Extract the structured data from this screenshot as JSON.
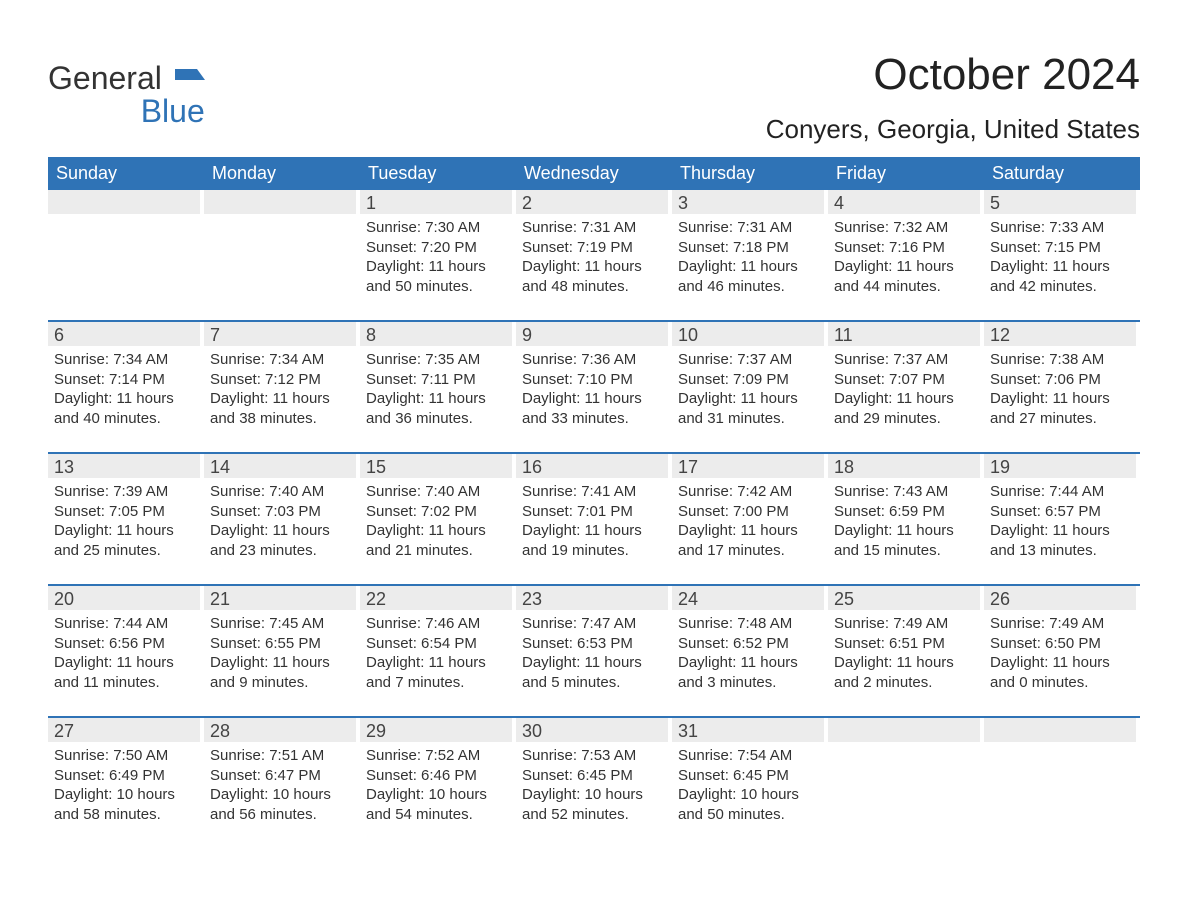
{
  "brand": {
    "line1": "General",
    "line2": "Blue",
    "logo_color": "#2f73b6",
    "text_color": "#333333"
  },
  "title": "October 2024",
  "location": "Conyers, Georgia, United States",
  "colors": {
    "header_bg": "#2f73b6",
    "header_text": "#ffffff",
    "daynum_bg": "#ececec",
    "text": "#333333",
    "week_border": "#2f73b6",
    "background": "#ffffff"
  },
  "typography": {
    "title_fontsize": 44,
    "location_fontsize": 26,
    "weekday_fontsize": 18,
    "daynum_fontsize": 18,
    "body_fontsize": 15
  },
  "weekdays": [
    "Sunday",
    "Monday",
    "Tuesday",
    "Wednesday",
    "Thursday",
    "Friday",
    "Saturday"
  ],
  "weeks": [
    [
      null,
      null,
      {
        "n": "1",
        "sunrise": "Sunrise: 7:30 AM",
        "sunset": "Sunset: 7:20 PM",
        "d1": "Daylight: 11 hours",
        "d2": "and 50 minutes."
      },
      {
        "n": "2",
        "sunrise": "Sunrise: 7:31 AM",
        "sunset": "Sunset: 7:19 PM",
        "d1": "Daylight: 11 hours",
        "d2": "and 48 minutes."
      },
      {
        "n": "3",
        "sunrise": "Sunrise: 7:31 AM",
        "sunset": "Sunset: 7:18 PM",
        "d1": "Daylight: 11 hours",
        "d2": "and 46 minutes."
      },
      {
        "n": "4",
        "sunrise": "Sunrise: 7:32 AM",
        "sunset": "Sunset: 7:16 PM",
        "d1": "Daylight: 11 hours",
        "d2": "and 44 minutes."
      },
      {
        "n": "5",
        "sunrise": "Sunrise: 7:33 AM",
        "sunset": "Sunset: 7:15 PM",
        "d1": "Daylight: 11 hours",
        "d2": "and 42 minutes."
      }
    ],
    [
      {
        "n": "6",
        "sunrise": "Sunrise: 7:34 AM",
        "sunset": "Sunset: 7:14 PM",
        "d1": "Daylight: 11 hours",
        "d2": "and 40 minutes."
      },
      {
        "n": "7",
        "sunrise": "Sunrise: 7:34 AM",
        "sunset": "Sunset: 7:12 PM",
        "d1": "Daylight: 11 hours",
        "d2": "and 38 minutes."
      },
      {
        "n": "8",
        "sunrise": "Sunrise: 7:35 AM",
        "sunset": "Sunset: 7:11 PM",
        "d1": "Daylight: 11 hours",
        "d2": "and 36 minutes."
      },
      {
        "n": "9",
        "sunrise": "Sunrise: 7:36 AM",
        "sunset": "Sunset: 7:10 PM",
        "d1": "Daylight: 11 hours",
        "d2": "and 33 minutes."
      },
      {
        "n": "10",
        "sunrise": "Sunrise: 7:37 AM",
        "sunset": "Sunset: 7:09 PM",
        "d1": "Daylight: 11 hours",
        "d2": "and 31 minutes."
      },
      {
        "n": "11",
        "sunrise": "Sunrise: 7:37 AM",
        "sunset": "Sunset: 7:07 PM",
        "d1": "Daylight: 11 hours",
        "d2": "and 29 minutes."
      },
      {
        "n": "12",
        "sunrise": "Sunrise: 7:38 AM",
        "sunset": "Sunset: 7:06 PM",
        "d1": "Daylight: 11 hours",
        "d2": "and 27 minutes."
      }
    ],
    [
      {
        "n": "13",
        "sunrise": "Sunrise: 7:39 AM",
        "sunset": "Sunset: 7:05 PM",
        "d1": "Daylight: 11 hours",
        "d2": "and 25 minutes."
      },
      {
        "n": "14",
        "sunrise": "Sunrise: 7:40 AM",
        "sunset": "Sunset: 7:03 PM",
        "d1": "Daylight: 11 hours",
        "d2": "and 23 minutes."
      },
      {
        "n": "15",
        "sunrise": "Sunrise: 7:40 AM",
        "sunset": "Sunset: 7:02 PM",
        "d1": "Daylight: 11 hours",
        "d2": "and 21 minutes."
      },
      {
        "n": "16",
        "sunrise": "Sunrise: 7:41 AM",
        "sunset": "Sunset: 7:01 PM",
        "d1": "Daylight: 11 hours",
        "d2": "and 19 minutes."
      },
      {
        "n": "17",
        "sunrise": "Sunrise: 7:42 AM",
        "sunset": "Sunset: 7:00 PM",
        "d1": "Daylight: 11 hours",
        "d2": "and 17 minutes."
      },
      {
        "n": "18",
        "sunrise": "Sunrise: 7:43 AM",
        "sunset": "Sunset: 6:59 PM",
        "d1": "Daylight: 11 hours",
        "d2": "and 15 minutes."
      },
      {
        "n": "19",
        "sunrise": "Sunrise: 7:44 AM",
        "sunset": "Sunset: 6:57 PM",
        "d1": "Daylight: 11 hours",
        "d2": "and 13 minutes."
      }
    ],
    [
      {
        "n": "20",
        "sunrise": "Sunrise: 7:44 AM",
        "sunset": "Sunset: 6:56 PM",
        "d1": "Daylight: 11 hours",
        "d2": "and 11 minutes."
      },
      {
        "n": "21",
        "sunrise": "Sunrise: 7:45 AM",
        "sunset": "Sunset: 6:55 PM",
        "d1": "Daylight: 11 hours",
        "d2": "and 9 minutes."
      },
      {
        "n": "22",
        "sunrise": "Sunrise: 7:46 AM",
        "sunset": "Sunset: 6:54 PM",
        "d1": "Daylight: 11 hours",
        "d2": "and 7 minutes."
      },
      {
        "n": "23",
        "sunrise": "Sunrise: 7:47 AM",
        "sunset": "Sunset: 6:53 PM",
        "d1": "Daylight: 11 hours",
        "d2": "and 5 minutes."
      },
      {
        "n": "24",
        "sunrise": "Sunrise: 7:48 AM",
        "sunset": "Sunset: 6:52 PM",
        "d1": "Daylight: 11 hours",
        "d2": "and 3 minutes."
      },
      {
        "n": "25",
        "sunrise": "Sunrise: 7:49 AM",
        "sunset": "Sunset: 6:51 PM",
        "d1": "Daylight: 11 hours",
        "d2": "and 2 minutes."
      },
      {
        "n": "26",
        "sunrise": "Sunrise: 7:49 AM",
        "sunset": "Sunset: 6:50 PM",
        "d1": "Daylight: 11 hours",
        "d2": "and 0 minutes."
      }
    ],
    [
      {
        "n": "27",
        "sunrise": "Sunrise: 7:50 AM",
        "sunset": "Sunset: 6:49 PM",
        "d1": "Daylight: 10 hours",
        "d2": "and 58 minutes."
      },
      {
        "n": "28",
        "sunrise": "Sunrise: 7:51 AM",
        "sunset": "Sunset: 6:47 PM",
        "d1": "Daylight: 10 hours",
        "d2": "and 56 minutes."
      },
      {
        "n": "29",
        "sunrise": "Sunrise: 7:52 AM",
        "sunset": "Sunset: 6:46 PM",
        "d1": "Daylight: 10 hours",
        "d2": "and 54 minutes."
      },
      {
        "n": "30",
        "sunrise": "Sunrise: 7:53 AM",
        "sunset": "Sunset: 6:45 PM",
        "d1": "Daylight: 10 hours",
        "d2": "and 52 minutes."
      },
      {
        "n": "31",
        "sunrise": "Sunrise: 7:54 AM",
        "sunset": "Sunset: 6:45 PM",
        "d1": "Daylight: 10 hours",
        "d2": "and 50 minutes."
      },
      null,
      null
    ]
  ]
}
